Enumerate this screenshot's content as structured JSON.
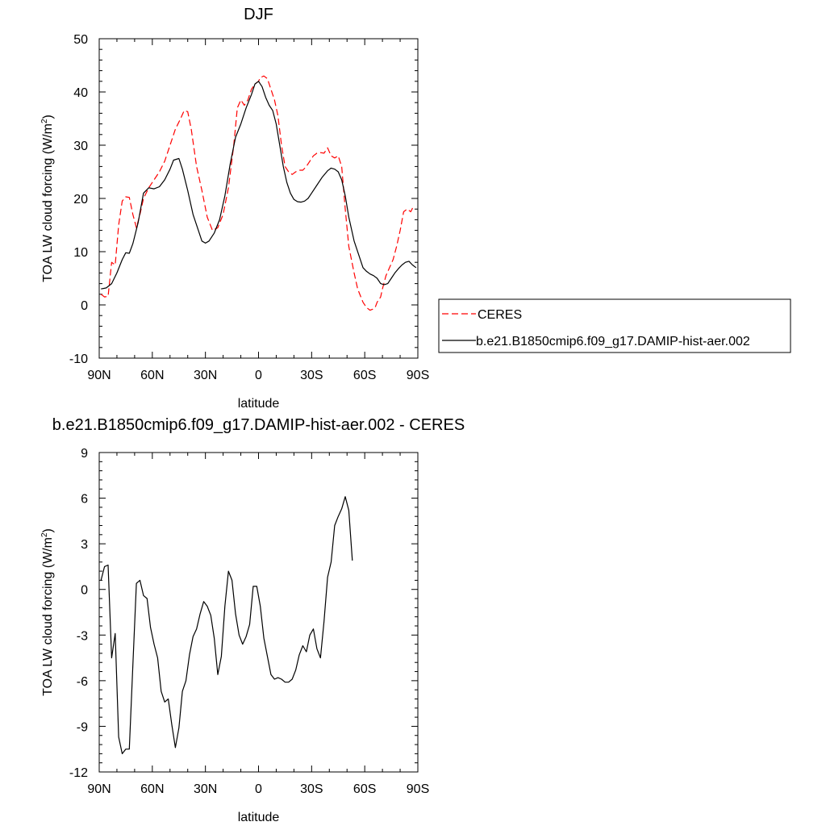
{
  "colors": {
    "ceres": "#ff0000",
    "model": "#000000",
    "axis": "#000000",
    "background": "#ffffff"
  },
  "chart_data": [
    {
      "type": "line",
      "title": "DJF",
      "xlabel": "latitude",
      "ylabel_main": "TOA LW cloud forcing (W/m",
      "ylabel_sup": "2",
      "ylabel_close": ")",
      "xlim": [
        -90,
        90
      ],
      "ylim": [
        -10,
        50
      ],
      "xticks": [
        {
          "value": -90,
          "label": "90N"
        },
        {
          "value": -60,
          "label": "60N"
        },
        {
          "value": -30,
          "label": "30N"
        },
        {
          "value": 0,
          "label": "0"
        },
        {
          "value": 30,
          "label": "30S"
        },
        {
          "value": 60,
          "label": "60S"
        },
        {
          "value": 90,
          "label": "90S"
        }
      ],
      "yticks": [
        {
          "value": 50,
          "label": "50"
        },
        {
          "value": 40,
          "label": "40"
        },
        {
          "value": 30,
          "label": "30"
        },
        {
          "value": 20,
          "label": "20"
        },
        {
          "value": 10,
          "label": "10"
        },
        {
          "value": 0,
          "label": "0"
        },
        {
          "value": -10,
          "label": "-10"
        }
      ],
      "legend": {
        "position": "right"
      },
      "series": [
        {
          "name": "CERES",
          "style": "dashed",
          "points": [
            [
              -89,
              2.0
            ],
            [
              -87,
              1.5
            ],
            [
              -85,
              1.6
            ],
            [
              -83,
              8.0
            ],
            [
              -81,
              7.5
            ],
            [
              -79,
              15.0
            ],
            [
              -77,
              19.5
            ],
            [
              -75,
              20.3
            ],
            [
              -73,
              20.2
            ],
            [
              -71,
              17.0
            ],
            [
              -69,
              14.5
            ],
            [
              -67,
              17.0
            ],
            [
              -65,
              20.0
            ],
            [
              -62,
              22.0
            ],
            [
              -59,
              23.5
            ],
            [
              -56,
              25.0
            ],
            [
              -53,
              27.0
            ],
            [
              -50,
              30.0
            ],
            [
              -47,
              33.0
            ],
            [
              -44,
              35.0
            ],
            [
              -42,
              36.5
            ],
            [
              -40,
              36.3
            ],
            [
              -38,
              33.0
            ],
            [
              -35,
              26.0
            ],
            [
              -32,
              21.5
            ],
            [
              -29,
              16.5
            ],
            [
              -26,
              14.0
            ],
            [
              -23,
              14.5
            ],
            [
              -20,
              17.0
            ],
            [
              -17,
              22.0
            ],
            [
              -14,
              30.0
            ],
            [
              -12,
              37.0
            ],
            [
              -10,
              38.5
            ],
            [
              -8,
              37.5
            ],
            [
              -6,
              38.5
            ],
            [
              -4,
              40.5
            ],
            [
              -2,
              41.5
            ],
            [
              0,
              42.0
            ],
            [
              1,
              42.7
            ],
            [
              3,
              43.0
            ],
            [
              5,
              42.5
            ],
            [
              7,
              40.5
            ],
            [
              9,
              38.5
            ],
            [
              11,
              35.5
            ],
            [
              13,
              30.0
            ],
            [
              15,
              26.0
            ],
            [
              17,
              25.0
            ],
            [
              19,
              24.5
            ],
            [
              21,
              25.0
            ],
            [
              23,
              25.3
            ],
            [
              25,
              25.3
            ],
            [
              27,
              26.0
            ],
            [
              29,
              27.0
            ],
            [
              31,
              28.0
            ],
            [
              33,
              28.5
            ],
            [
              35,
              28.6
            ],
            [
              37,
              28.5
            ],
            [
              39,
              29.5
            ],
            [
              41,
              28.0
            ],
            [
              43,
              27.6
            ],
            [
              45,
              28.0
            ],
            [
              47,
              26.0
            ],
            [
              49,
              18.0
            ],
            [
              51,
              11.0
            ],
            [
              54,
              6.0
            ],
            [
              56,
              3.0
            ],
            [
              59,
              0.5
            ],
            [
              61,
              -0.5
            ],
            [
              63,
              -1.0
            ],
            [
              64.5,
              -0.8
            ],
            [
              66,
              -0.4
            ],
            [
              67,
              0.5
            ],
            [
              69,
              1.5
            ],
            [
              70,
              3.0
            ],
            [
              72,
              5.5
            ],
            [
              74,
              7.0
            ],
            [
              76,
              8.5
            ],
            [
              78,
              11.0
            ],
            [
              80,
              14.0
            ],
            [
              82,
              17.5
            ],
            [
              84,
              18.0
            ],
            [
              86,
              17.5
            ],
            [
              87.5,
              18.5
            ]
          ]
        },
        {
          "name": "b.e21.B1850cmip6.f09_g17.DAMIP-hist-aer.002",
          "style": "solid",
          "points": [
            [
              -89,
              3.0
            ],
            [
              -86,
              3.2
            ],
            [
              -83,
              4.0
            ],
            [
              -80,
              6.0
            ],
            [
              -77,
              8.5
            ],
            [
              -75,
              9.8
            ],
            [
              -73,
              9.7
            ],
            [
              -71,
              11.5
            ],
            [
              -68,
              15.5
            ],
            [
              -65,
              21.0
            ],
            [
              -62,
              22.0
            ],
            [
              -59,
              21.8
            ],
            [
              -56,
              22.2
            ],
            [
              -53,
              23.5
            ],
            [
              -50,
              25.5
            ],
            [
              -48,
              27.2
            ],
            [
              -45,
              27.5
            ],
            [
              -43,
              25.5
            ],
            [
              -40,
              21.5
            ],
            [
              -37,
              17.0
            ],
            [
              -34,
              14.0
            ],
            [
              -32,
              12.0
            ],
            [
              -30,
              11.6
            ],
            [
              -28,
              12.0
            ],
            [
              -25,
              13.5
            ],
            [
              -22,
              16.0
            ],
            [
              -19,
              20.5
            ],
            [
              -16,
              26.5
            ],
            [
              -13,
              31.5
            ],
            [
              -10,
              34.0
            ],
            [
              -7,
              37.0
            ],
            [
              -4,
              39.5
            ],
            [
              -2,
              41.5
            ],
            [
              0,
              42.0
            ],
            [
              2,
              41.0
            ],
            [
              4,
              39.0
            ],
            [
              6,
              37.5
            ],
            [
              8,
              36.5
            ],
            [
              10,
              34.0
            ],
            [
              12,
              30.0
            ],
            [
              14,
              26.0
            ],
            [
              16,
              23.0
            ],
            [
              18,
              21.0
            ],
            [
              20,
              19.8
            ],
            [
              22,
              19.4
            ],
            [
              24,
              19.3
            ],
            [
              26,
              19.5
            ],
            [
              28,
              20.0
            ],
            [
              30,
              21.0
            ],
            [
              33,
              22.5
            ],
            [
              36,
              24.0
            ],
            [
              39,
              25.2
            ],
            [
              41,
              25.7
            ],
            [
              43,
              25.5
            ],
            [
              45,
              25.0
            ],
            [
              47,
              23.5
            ],
            [
              49,
              20.5
            ],
            [
              51,
              16.5
            ],
            [
              54,
              12.0
            ],
            [
              57,
              9.0
            ],
            [
              59,
              7.0
            ],
            [
              61,
              6.3
            ],
            [
              63,
              5.8
            ],
            [
              65,
              5.5
            ],
            [
              67,
              5.0
            ],
            [
              69,
              4.0
            ],
            [
              71,
              3.8
            ],
            [
              73,
              4.0
            ],
            [
              75,
              5.0
            ],
            [
              77,
              6.0
            ],
            [
              79,
              6.8
            ],
            [
              81,
              7.5
            ],
            [
              83,
              8.0
            ],
            [
              85,
              8.2
            ],
            [
              87,
              7.5
            ],
            [
              89,
              7.0
            ]
          ]
        }
      ]
    },
    {
      "type": "line",
      "title": "b.e21.B1850cmip6.f09_g17.DAMIP-hist-aer.002 - CERES",
      "xlabel": "latitude",
      "ylabel_main": "TOA LW cloud forcing (W/m",
      "ylabel_sup": "2",
      "ylabel_close": ")",
      "xlim": [
        -90,
        90
      ],
      "ylim": [
        -12,
        9
      ],
      "xticks": [
        {
          "value": -90,
          "label": "90N"
        },
        {
          "value": -60,
          "label": "60N"
        },
        {
          "value": -30,
          "label": "30N"
        },
        {
          "value": 0,
          "label": "0"
        },
        {
          "value": 30,
          "label": "30S"
        },
        {
          "value": 60,
          "label": "60S"
        },
        {
          "value": 90,
          "label": "90S"
        }
      ],
      "yticks": [
        {
          "value": 9,
          "label": "9"
        },
        {
          "value": 6,
          "label": "6"
        },
        {
          "value": 3,
          "label": "3"
        },
        {
          "value": 0,
          "label": "0"
        },
        {
          "value": -3,
          "label": "-3"
        },
        {
          "value": -6,
          "label": "-6"
        },
        {
          "value": -9,
          "label": "-9"
        },
        {
          "value": -12,
          "label": "-12"
        }
      ],
      "series": [
        {
          "style": "solid",
          "points": [
            [
              -89,
              0.6
            ],
            [
              -87,
              1.5
            ],
            [
              -85,
              1.6
            ],
            [
              -83,
              -4.5
            ],
            [
              -81,
              -2.9
            ],
            [
              -79,
              -9.7
            ],
            [
              -77,
              -10.8
            ],
            [
              -75,
              -10.5
            ],
            [
              -73,
              -10.5
            ],
            [
              -71,
              -5.0
            ],
            [
              -69,
              0.4
            ],
            [
              -67,
              0.6
            ],
            [
              -65,
              -0.4
            ],
            [
              -63,
              -0.6
            ],
            [
              -61,
              -2.5
            ],
            [
              -59,
              -3.6
            ],
            [
              -57,
              -4.5
            ],
            [
              -55,
              -6.7
            ],
            [
              -53,
              -7.4
            ],
            [
              -51,
              -7.2
            ],
            [
              -49,
              -8.9
            ],
            [
              -47,
              -10.4
            ],
            [
              -45,
              -9.1
            ],
            [
              -43,
              -6.7
            ],
            [
              -41,
              -6.0
            ],
            [
              -39,
              -4.3
            ],
            [
              -37,
              -3.1
            ],
            [
              -35,
              -2.6
            ],
            [
              -33,
              -1.6
            ],
            [
              -31,
              -0.8
            ],
            [
              -29,
              -1.1
            ],
            [
              -27,
              -1.7
            ],
            [
              -25,
              -3.2
            ],
            [
              -23,
              -5.6
            ],
            [
              -21,
              -4.4
            ],
            [
              -19,
              -1.1
            ],
            [
              -17,
              1.2
            ],
            [
              -15,
              0.6
            ],
            [
              -13,
              -1.6
            ],
            [
              -11,
              -3.0
            ],
            [
              -9,
              -3.6
            ],
            [
              -7,
              -3.1
            ],
            [
              -5,
              -2.3
            ],
            [
              -3,
              0.2
            ],
            [
              -1,
              0.2
            ],
            [
              1,
              -1.1
            ],
            [
              3,
              -3.2
            ],
            [
              5,
              -4.4
            ],
            [
              7,
              -5.6
            ],
            [
              9,
              -5.9
            ],
            [
              11,
              -5.8
            ],
            [
              13,
              -5.9
            ],
            [
              15,
              -6.1
            ],
            [
              17,
              -6.1
            ],
            [
              19,
              -5.9
            ],
            [
              21,
              -5.3
            ],
            [
              23,
              -4.3
            ],
            [
              25,
              -3.7
            ],
            [
              27,
              -4.1
            ],
            [
              29,
              -3.0
            ],
            [
              31,
              -2.6
            ],
            [
              33,
              -3.9
            ],
            [
              35,
              -4.5
            ],
            [
              37,
              -2.1
            ],
            [
              39,
              0.8
            ],
            [
              41,
              1.8
            ],
            [
              43,
              4.2
            ],
            [
              45,
              4.8
            ],
            [
              47,
              5.3
            ],
            [
              49,
              6.1
            ],
            [
              51,
              5.2
            ],
            [
              53,
              1.9
            ]
          ]
        }
      ]
    }
  ]
}
